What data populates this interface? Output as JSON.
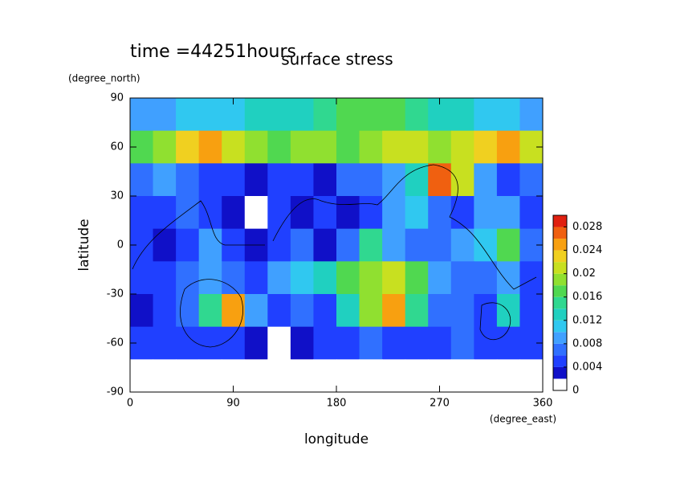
{
  "chart_data": {
    "type": "contour",
    "time_label": "time =44251hours",
    "title": "surface stress",
    "x_label": "longitude",
    "x_unit": "(degree_east)",
    "y_label": "latitude",
    "y_unit": "(degree_north)",
    "xlim": [
      0,
      360
    ],
    "xticks": [
      0,
      90,
      180,
      270,
      360
    ],
    "ylim": [
      -90,
      90
    ],
    "yticks": [
      -90,
      -60,
      -30,
      0,
      30,
      60,
      90
    ],
    "x": [
      10,
      30,
      50,
      70,
      90,
      110,
      130,
      150,
      170,
      190,
      210,
      230,
      250,
      270,
      290,
      310,
      330,
      350
    ],
    "y": [
      80,
      60,
      40,
      20,
      0,
      -20,
      -40,
      -60,
      -80
    ],
    "z": [
      [
        0.008,
        0.008,
        0.01,
        0.01,
        0.01,
        0.012,
        0.012,
        0.012,
        0.014,
        0.016,
        0.016,
        0.016,
        0.014,
        0.012,
        0.012,
        0.01,
        0.01,
        0.008
      ],
      [
        0.016,
        0.018,
        0.022,
        0.024,
        0.02,
        0.018,
        0.016,
        0.018,
        0.018,
        0.016,
        0.018,
        0.02,
        0.02,
        0.018,
        0.02,
        0.022,
        0.024,
        0.02
      ],
      [
        0.006,
        0.008,
        0.006,
        0.004,
        0.004,
        0.002,
        0.004,
        0.004,
        0.002,
        0.006,
        0.006,
        0.008,
        0.012,
        0.026,
        0.02,
        0.008,
        0.004,
        0.006
      ],
      [
        0.004,
        0.004,
        0.006,
        0.004,
        0.002,
        0.001,
        0.004,
        0.002,
        0.004,
        0.002,
        0.004,
        0.008,
        0.01,
        0.006,
        0.004,
        0.008,
        0.008,
        0.004
      ],
      [
        0.004,
        0.002,
        0.004,
        0.008,
        0.004,
        0.002,
        0.004,
        0.006,
        0.002,
        0.006,
        0.014,
        0.008,
        0.006,
        0.006,
        0.008,
        0.01,
        0.016,
        0.006
      ],
      [
        0.004,
        0.004,
        0.006,
        0.008,
        0.006,
        0.004,
        0.008,
        0.01,
        0.012,
        0.016,
        0.018,
        0.02,
        0.016,
        0.008,
        0.006,
        0.006,
        0.008,
        0.004
      ],
      [
        0.002,
        0.004,
        0.006,
        0.014,
        0.024,
        0.008,
        0.004,
        0.006,
        0.004,
        0.012,
        0.018,
        0.024,
        0.014,
        0.006,
        0.006,
        0.004,
        0.012,
        0.004
      ],
      [
        0.004,
        0.004,
        0.004,
        0.004,
        0.004,
        0.002,
        0.001,
        0.002,
        0.004,
        0.004,
        0.006,
        0.004,
        0.004,
        0.004,
        0.006,
        0.004,
        0.004,
        0.004
      ],
      [
        0,
        0,
        0,
        0,
        0,
        0,
        0,
        0,
        0,
        0,
        0,
        0,
        0,
        0,
        0,
        0,
        0,
        0
      ]
    ],
    "levels": [
      0,
      0.002,
      0.004,
      0.006,
      0.008,
      0.01,
      0.012,
      0.014,
      0.016,
      0.018,
      0.02,
      0.022,
      0.024,
      0.026,
      0.028,
      0.03
    ],
    "colors": [
      "#ffffff",
      "#1010c8",
      "#2040ff",
      "#3070ff",
      "#40a0ff",
      "#30c8f0",
      "#20d0c0",
      "#30d890",
      "#50d850",
      "#90e030",
      "#c8e020",
      "#f0d020",
      "#f8a010",
      "#f06010",
      "#e02010"
    ],
    "colorbar_lim": [
      0,
      0.03
    ],
    "colorbar_ticks": [
      0,
      0.004,
      0.008,
      0.012,
      0.016,
      0.02,
      0.024,
      0.028
    ]
  }
}
